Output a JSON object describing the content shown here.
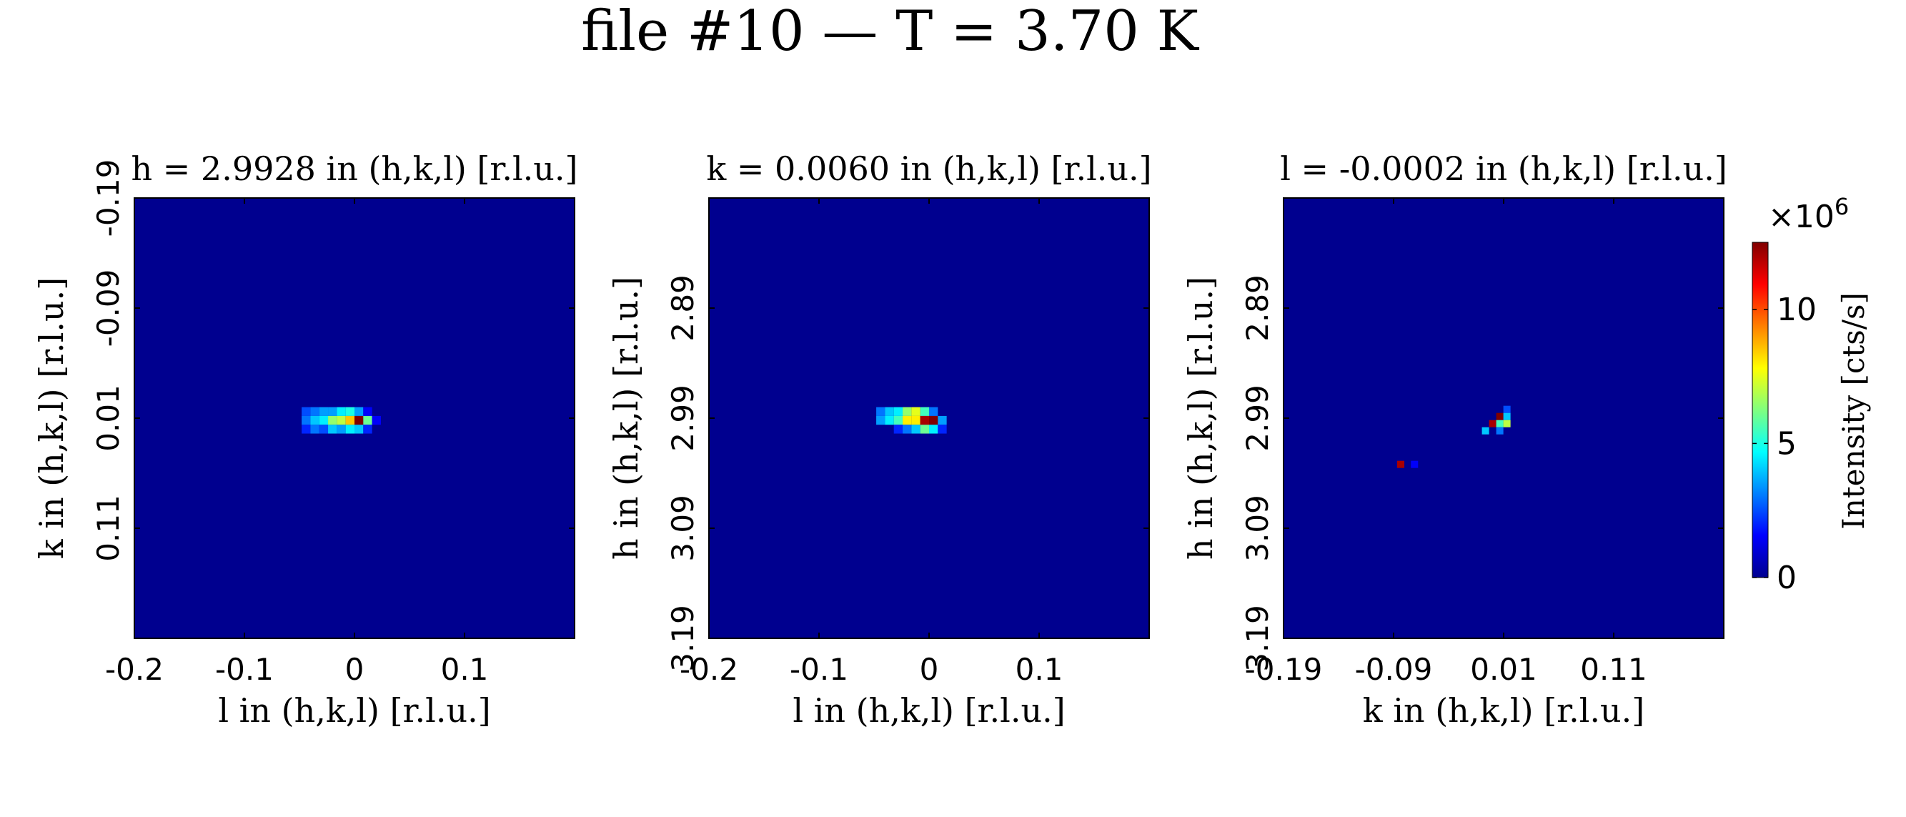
{
  "figure": {
    "title": "file #10 — T = 3.70 K"
  },
  "colors": {
    "background_map": "#00008f",
    "frame": "#000000",
    "colormap": "jet"
  },
  "chart_data": [
    {
      "type": "heatmap",
      "title": "h = 2.9928 in (h,k,l) [r.l.u.]",
      "xlabel": "l in (h,k,l) [r.l.u.]",
      "ylabel": "k in (h,k,l) [r.l.u.]",
      "xlim": [
        -0.2,
        0.2
      ],
      "ylim": [
        -0.19,
        0.21
      ],
      "y_reversed": true,
      "xticks": [
        -0.2,
        -0.1,
        0,
        0.1
      ],
      "xticklabels": [
        "-0.2",
        "-0.1",
        "0",
        "0.1"
      ],
      "yticks": [
        -0.19,
        -0.09,
        0.01,
        0.11
      ],
      "yticklabels": [
        "-0.19",
        "-0.09",
        "0.01",
        "0.11"
      ],
      "cell_size": [
        0.008,
        0.008
      ],
      "cells": [
        {
          "x": -0.044,
          "y": 0.004,
          "v": 2.5
        },
        {
          "x": -0.036,
          "y": 0.004,
          "v": 3.0
        },
        {
          "x": -0.028,
          "y": 0.004,
          "v": 3.5
        },
        {
          "x": -0.02,
          "y": 0.004,
          "v": 3.5
        },
        {
          "x": -0.012,
          "y": 0.004,
          "v": 4.5
        },
        {
          "x": -0.004,
          "y": 0.004,
          "v": 5.0
        },
        {
          "x": 0.004,
          "y": 0.004,
          "v": 3.5
        },
        {
          "x": 0.012,
          "y": 0.004,
          "v": 1.5
        },
        {
          "x": -0.044,
          "y": 0.012,
          "v": 3.0
        },
        {
          "x": -0.036,
          "y": 0.012,
          "v": 4.0
        },
        {
          "x": -0.028,
          "y": 0.012,
          "v": 4.5
        },
        {
          "x": -0.02,
          "y": 0.012,
          "v": 6.5
        },
        {
          "x": -0.012,
          "y": 0.012,
          "v": 7.0
        },
        {
          "x": -0.004,
          "y": 0.012,
          "v": 8.5
        },
        {
          "x": 0.004,
          "y": 0.012,
          "v": 12.5
        },
        {
          "x": 0.012,
          "y": 0.012,
          "v": 6.0
        },
        {
          "x": 0.02,
          "y": 0.012,
          "v": 1.5
        },
        {
          "x": -0.044,
          "y": 0.02,
          "v": 2.0
        },
        {
          "x": -0.036,
          "y": 0.02,
          "v": 3.0
        },
        {
          "x": -0.028,
          "y": 0.02,
          "v": 2.5
        },
        {
          "x": -0.02,
          "y": 0.02,
          "v": 4.0
        },
        {
          "x": -0.012,
          "y": 0.02,
          "v": 3.5
        },
        {
          "x": -0.004,
          "y": 0.02,
          "v": 4.5
        },
        {
          "x": 0.004,
          "y": 0.02,
          "v": 4.0
        },
        {
          "x": 0.012,
          "y": 0.02,
          "v": 2.0
        }
      ]
    },
    {
      "type": "heatmap",
      "title": "k = 0.0060 in (h,k,l) [r.l.u.]",
      "xlabel": "l in (h,k,l) [r.l.u.]",
      "ylabel": "h in (h,k,l) [r.l.u.]",
      "xlim": [
        -0.2,
        0.2
      ],
      "ylim": [
        2.79,
        3.19
      ],
      "y_reversed": true,
      "xticks": [
        -0.2,
        -0.1,
        0,
        0.1
      ],
      "xticklabels": [
        "-0.2",
        "-0.1",
        "0",
        "0.1"
      ],
      "yticks": [
        2.89,
        2.99,
        3.09,
        3.19
      ],
      "yticklabels": [
        "2.89",
        "2.99",
        "3.09",
        "3.19"
      ],
      "cell_size": [
        0.008,
        0.008
      ],
      "cells": [
        {
          "x": -0.044,
          "y": 2.984,
          "v": 3.0
        },
        {
          "x": -0.036,
          "y": 2.984,
          "v": 4.0
        },
        {
          "x": -0.028,
          "y": 2.984,
          "v": 4.5
        },
        {
          "x": -0.02,
          "y": 2.984,
          "v": 6.5
        },
        {
          "x": -0.012,
          "y": 2.984,
          "v": 7.5
        },
        {
          "x": -0.004,
          "y": 2.984,
          "v": 5.5
        },
        {
          "x": 0.004,
          "y": 2.984,
          "v": 3.0
        },
        {
          "x": -0.044,
          "y": 2.992,
          "v": 3.5
        },
        {
          "x": -0.036,
          "y": 2.992,
          "v": 4.5
        },
        {
          "x": -0.028,
          "y": 2.992,
          "v": 5.5
        },
        {
          "x": -0.02,
          "y": 2.992,
          "v": 8.0
        },
        {
          "x": -0.012,
          "y": 2.992,
          "v": 8.0
        },
        {
          "x": -0.004,
          "y": 2.992,
          "v": 12.0
        },
        {
          "x": 0.004,
          "y": 2.992,
          "v": 12.5
        },
        {
          "x": 0.012,
          "y": 2.992,
          "v": 3.5
        },
        {
          "x": -0.028,
          "y": 3.0,
          "v": 2.0
        },
        {
          "x": -0.02,
          "y": 3.0,
          "v": 3.0
        },
        {
          "x": -0.012,
          "y": 3.0,
          "v": 4.0
        },
        {
          "x": -0.004,
          "y": 3.0,
          "v": 6.0
        },
        {
          "x": 0.004,
          "y": 3.0,
          "v": 4.5
        },
        {
          "x": 0.012,
          "y": 3.0,
          "v": 2.0
        }
      ]
    },
    {
      "type": "heatmap",
      "title": "l = -0.0002 in (h,k,l) [r.l.u.]",
      "xlabel": "k in (h,k,l) [r.l.u.]",
      "ylabel": "h in (h,k,l) [r.l.u.]",
      "xlim": [
        -0.19,
        0.21
      ],
      "ylim": [
        2.79,
        3.19
      ],
      "y_reversed": true,
      "xticks": [
        -0.19,
        -0.09,
        0.01,
        0.11
      ],
      "xticklabels": [
        "-0.19",
        "-0.09",
        "0.01",
        "0.11"
      ],
      "yticks": [
        2.89,
        2.99,
        3.09,
        3.19
      ],
      "yticklabels": [
        "2.89",
        "2.99",
        "3.09",
        "3.19"
      ],
      "cell_size": [
        0.0065,
        0.0065
      ],
      "cells": [
        {
          "x": 0.013,
          "y": 2.982,
          "v": 2.5
        },
        {
          "x": 0.0065,
          "y": 2.9885,
          "v": 12.5
        },
        {
          "x": 0.013,
          "y": 2.9885,
          "v": 4.0
        },
        {
          "x": 0.0,
          "y": 2.995,
          "v": 12.0
        },
        {
          "x": 0.0065,
          "y": 2.995,
          "v": 5.5
        },
        {
          "x": 0.013,
          "y": 2.995,
          "v": 7.0
        },
        {
          "x": -0.0065,
          "y": 3.0015,
          "v": 4.0
        },
        {
          "x": 0.0065,
          "y": 3.0015,
          "v": 3.0
        },
        {
          "x": -0.0835,
          "y": 3.032,
          "v": 12.0
        },
        {
          "x": -0.071,
          "y": 3.032,
          "v": 1.5
        }
      ]
    }
  ],
  "colorbar": {
    "label": "Intensity [cts/s]",
    "multiplier_base": "×10",
    "multiplier_exp": "6",
    "min": 0,
    "max": 12.5,
    "ticks": [
      0,
      5,
      10
    ],
    "ticklabels": [
      "0",
      "5",
      "10"
    ]
  }
}
